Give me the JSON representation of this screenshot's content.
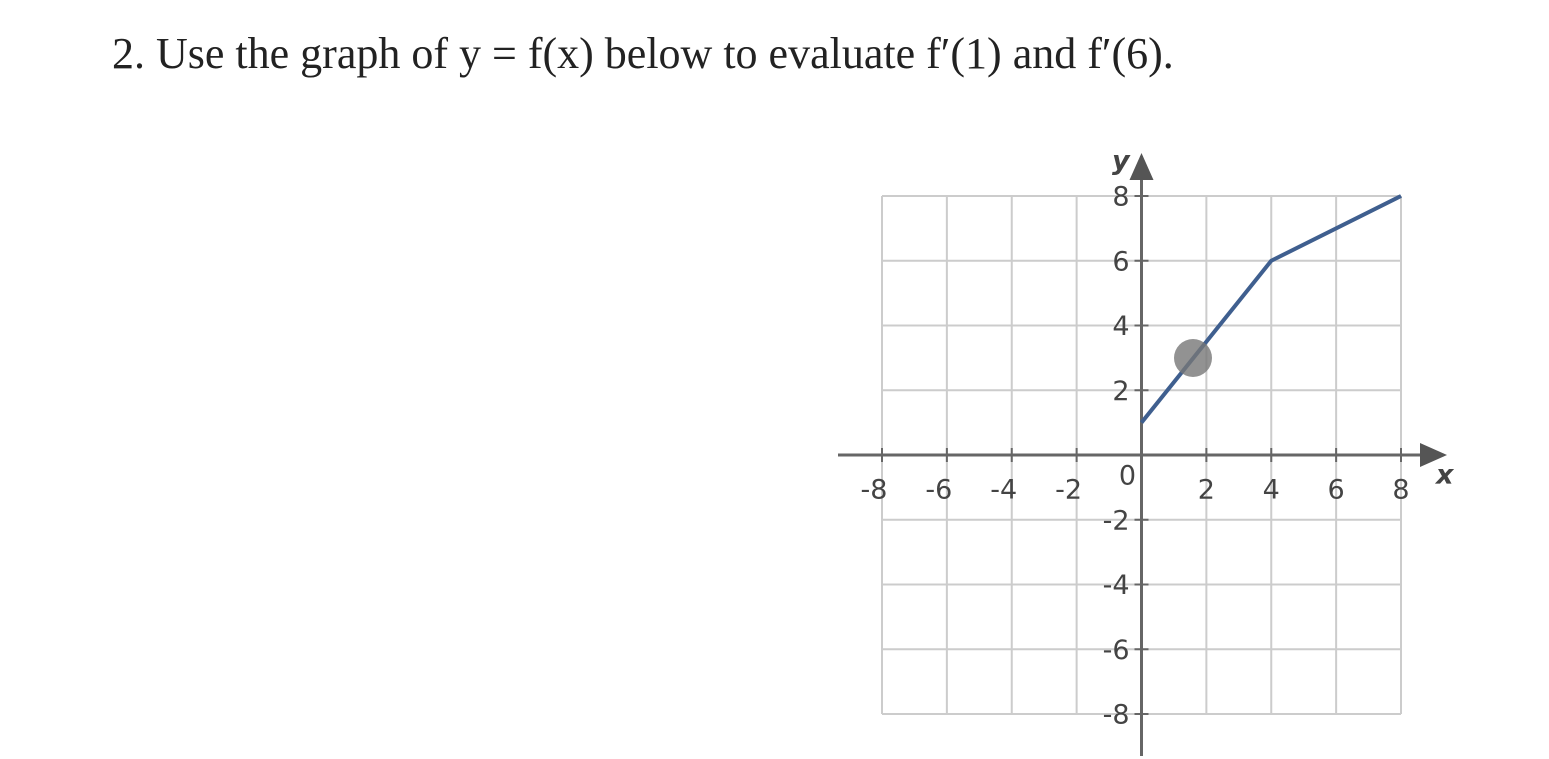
{
  "question": "2. Use the graph of y = f(x) below to evaluate f′(1) and f′(6).",
  "chart_data": {
    "type": "line",
    "x": [
      0,
      4,
      8
    ],
    "values": [
      1,
      6,
      8
    ],
    "color": "#3f5f8f",
    "xlabel": "x",
    "ylabel": "y",
    "xlim": [
      -8,
      8
    ],
    "ylim": [
      -8,
      8
    ],
    "xticks": [
      -8,
      -6,
      -4,
      -2,
      0,
      2,
      4,
      6,
      8
    ],
    "yticks": [
      -8,
      -6,
      -4,
      -2,
      2,
      4,
      6,
      8
    ],
    "grid": true
  }
}
